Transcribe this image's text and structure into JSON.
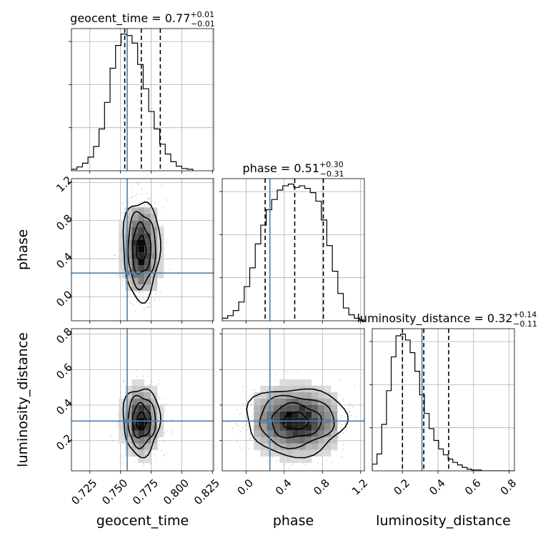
{
  "chart_data": {
    "type": "corner",
    "parameters": [
      "geocent_time",
      "phase",
      "luminosity_distance"
    ],
    "axis_labels": [
      "geocent_time",
      "phase",
      "luminosity_distance"
    ],
    "ranges": [
      [
        0.71,
        0.826
      ],
      [
        -0.25,
        1.24
      ],
      [
        0.03,
        0.83
      ]
    ],
    "ticks": [
      {
        "values": [
          0.725,
          0.75,
          0.775,
          0.8,
          0.825
        ],
        "labels": [
          "0.725",
          "0.750",
          "0.775",
          "0.800",
          "0.825"
        ]
      },
      {
        "values": [
          0.0,
          0.4,
          0.8,
          1.2
        ],
        "labels": [
          "0.0",
          "0.4",
          "0.8",
          "1.2"
        ]
      },
      {
        "values": [
          0.2,
          0.4,
          0.6,
          0.8
        ],
        "labels": [
          "0.2",
          "0.4",
          "0.6",
          "0.8"
        ]
      }
    ],
    "truths": [
      0.7555,
      0.25,
      0.31
    ],
    "truth_color": "#4682b4",
    "quantiles": [
      [
        0.7535,
        0.767,
        0.7825
      ],
      [
        0.2,
        0.51,
        0.81
      ],
      [
        0.2,
        0.32,
        0.46
      ]
    ],
    "titles": [
      {
        "param": "geocent_time",
        "value": "0.77",
        "plus": "+0.01",
        "minus": "−0.01"
      },
      {
        "param": "phase",
        "value": "0.51",
        "plus": "+0.30",
        "minus": "−0.31"
      },
      {
        "param": "luminosity_distance",
        "value": "0.32",
        "plus": "+0.14",
        "minus": "−0.11"
      }
    ],
    "histograms": [
      {
        "param": "geocent_time",
        "bin_start": 0.71,
        "bin_width": 0.0045,
        "counts": [
          2,
          5,
          10,
          18,
          32,
          55,
          90,
          135,
          165,
          180,
          178,
          168,
          140,
          108,
          78,
          55,
          35,
          22,
          12,
          6,
          3,
          2
        ]
      },
      {
        "param": "phase",
        "bin_start": -0.25,
        "bin_width": 0.0577,
        "counts": [
          3,
          6,
          12,
          22,
          40,
          62,
          90,
          112,
          130,
          142,
          153,
          158,
          160,
          156,
          158,
          155,
          150,
          140,
          118,
          88,
          58,
          32,
          15,
          7,
          3,
          1
        ]
      },
      {
        "param": "luminosity_distance",
        "bin_start": 0.03,
        "bin_width": 0.02667,
        "counts": [
          8,
          20,
          55,
          95,
          135,
          160,
          162,
          155,
          140,
          118,
          90,
          68,
          50,
          36,
          26,
          19,
          14,
          10,
          7,
          4,
          2,
          1,
          1,
          0,
          0,
          0,
          0,
          0,
          0,
          0
        ]
      }
    ],
    "density_2d": [
      {
        "x": "geocent_time",
        "y": "phase",
        "mean": [
          0.767,
          0.5
        ],
        "sigma": [
          0.0075,
          0.26
        ]
      },
      {
        "x": "geocent_time",
        "y": "luminosity_distance",
        "mean": [
          0.767,
          0.31
        ],
        "sigma": [
          0.0075,
          0.095
        ]
      },
      {
        "x": "phase",
        "y": "luminosity_distance",
        "mean": [
          0.52,
          0.31
        ],
        "sigma": [
          0.26,
          0.095
        ]
      }
    ],
    "contour_levels": [
      0.5,
      1.0,
      1.5,
      2.0
    ],
    "grid": true,
    "colors": {
      "hist_line": "#000000",
      "contour": "#000000",
      "quantile": "#000000",
      "scatter": "#9a9a9a",
      "grid": "#b0b0b0"
    }
  }
}
